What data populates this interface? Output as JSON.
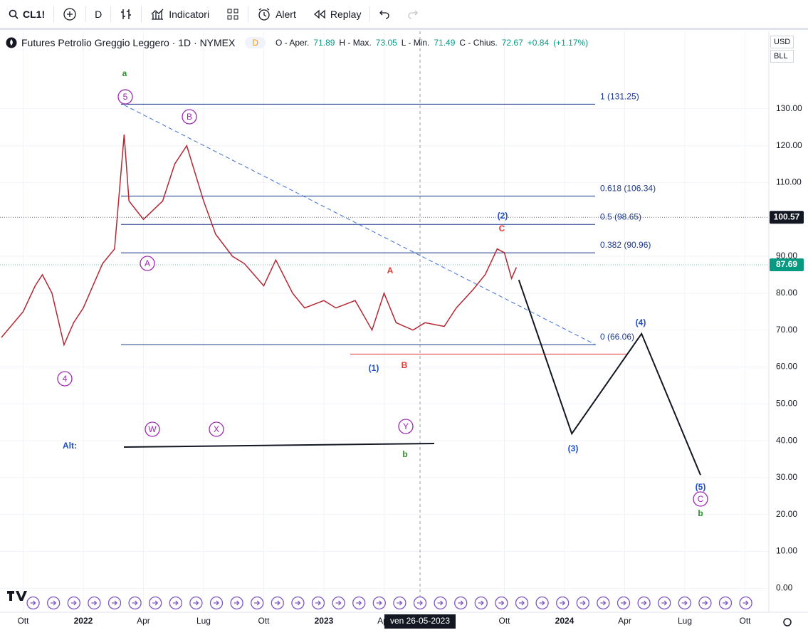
{
  "toolbar": {
    "symbol": "CL1!",
    "interval": "D",
    "indicators": "Indicatori",
    "alert": "Alert",
    "replay": "Replay"
  },
  "legend": {
    "title": "Futures Petrolio Greggio Leggero · 1D · NYMEX",
    "badge": "D",
    "open_label": "O - Aper.",
    "open": "71.89",
    "high_label": "H - Max.",
    "high": "73.05",
    "low_label": "L - Min.",
    "low": "71.49",
    "close_label": "C - Chius.",
    "close": "72.67",
    "change": "+0.84",
    "change_pct": "(+1.17%)"
  },
  "price_scale": {
    "currency": "USD",
    "unit": "BLL"
  },
  "crosshair_date": "ven 26-05-2023",
  "chart_data": {
    "type": "line",
    "color": "#b22833",
    "x": [
      2021.66,
      2021.75,
      2021.8,
      2021.83,
      2021.87,
      2021.92,
      2021.96,
      2022.0,
      2022.08,
      2022.13,
      2022.17,
      2022.19,
      2022.25,
      2022.33,
      2022.38,
      2022.43,
      2022.5,
      2022.55,
      2022.62,
      2022.67,
      2022.75,
      2022.8,
      2022.87,
      2022.92,
      2023.0,
      2023.05,
      2023.13,
      2023.2,
      2023.25,
      2023.3,
      2023.37,
      2023.42,
      2023.5,
      2023.55,
      2023.62,
      2023.67,
      2023.72,
      2023.75,
      2023.78,
      2023.8
    ],
    "values": [
      68,
      75,
      82,
      85,
      80,
      66,
      72,
      76,
      88,
      92,
      123,
      105,
      100,
      105,
      115,
      120,
      105,
      96,
      90,
      88,
      82,
      89,
      80,
      76,
      78,
      76,
      78,
      70,
      80,
      72,
      70,
      72,
      71,
      76,
      81,
      85,
      92,
      91,
      84,
      87
    ],
    "xlim": [
      2021.654,
      2024.849
    ],
    "ylim": [
      -6.5,
      151
    ],
    "xticks": [
      {
        "value": 2021.75,
        "label": "Ott"
      },
      {
        "value": 2022.0,
        "label": "2022"
      },
      {
        "value": 2022.25,
        "label": "Apr"
      },
      {
        "value": 2022.5,
        "label": "Lug"
      },
      {
        "value": 2022.75,
        "label": "Ott"
      },
      {
        "value": 2023.0,
        "label": "2023"
      },
      {
        "value": 2023.25,
        "label": "Apr"
      },
      {
        "value": 2023.75,
        "label": "Ott"
      },
      {
        "value": 2024.0,
        "label": "2024"
      },
      {
        "value": 2024.25,
        "label": "Apr"
      },
      {
        "value": 2024.5,
        "label": "Lug"
      },
      {
        "value": 2024.75,
        "label": "Ott"
      }
    ],
    "yticks": [
      {
        "value": 0,
        "label": "0.00"
      },
      {
        "value": 10,
        "label": "10.00"
      },
      {
        "value": 20,
        "label": "20.00"
      },
      {
        "value": 30,
        "label": "30.00"
      },
      {
        "value": 40,
        "label": "40.00"
      },
      {
        "value": 50,
        "label": "50.00"
      },
      {
        "value": 60,
        "label": "60.00"
      },
      {
        "value": 70,
        "label": "70.00"
      },
      {
        "value": 80,
        "label": "80.00"
      },
      {
        "value": 90,
        "label": "90.00"
      },
      {
        "value": 110,
        "label": "110.00"
      },
      {
        "value": 120,
        "label": "120.00"
      },
      {
        "value": 130,
        "label": "130.00"
      }
    ],
    "grid": true,
    "fib_levels": [
      {
        "value": 131.25,
        "label": "1 (131.25)"
      },
      {
        "value": 106.34,
        "label": "0.618 (106.34)"
      },
      {
        "value": 98.65,
        "label": "0.5 (98.65)"
      },
      {
        "value": 90.96,
        "label": "0.382 (90.96)"
      },
      {
        "value": 66.06,
        "label": "0 (66.06)"
      }
    ],
    "support": 63.5,
    "trendline": {
      "x": [
        2022.17,
        2024.13
      ],
      "values": [
        131,
        66
      ]
    },
    "projection": {
      "x": [
        2023.81,
        2024.03,
        2024.32,
        2024.565
      ],
      "values": [
        83.6,
        41.9,
        69,
        30.7
      ]
    },
    "price_tags": [
      {
        "value": 100.57,
        "label": "100.57",
        "color": "#131722"
      },
      {
        "value": 87.69,
        "label": "87.69",
        "color": "#089981"
      }
    ],
    "waves": [
      {
        "label": "a",
        "color": "#2e8b2e",
        "circled": false
      },
      {
        "label": "5",
        "color": "#9c27b0",
        "circled": true
      },
      {
        "label": "B",
        "color": "#9c27b0",
        "circled": true
      },
      {
        "label": "A",
        "color": "#9c27b0",
        "circled": true
      },
      {
        "label": "4",
        "color": "#9c27b0",
        "circled": true
      },
      {
        "label": "W",
        "color": "#9c27b0",
        "circled": true
      },
      {
        "label": "X",
        "color": "#9c27b0",
        "circled": true
      },
      {
        "label": "Y",
        "color": "#9c27b0",
        "circled": true
      },
      {
        "label": "b",
        "color": "#2e8b2e",
        "circled": false
      },
      {
        "label": "A",
        "color": "#e53935",
        "circled": false
      },
      {
        "label": "B",
        "color": "#e53935",
        "circled": false
      },
      {
        "label": "C",
        "color": "#e53935",
        "circled": false
      },
      {
        "label": "(1)",
        "color": "#1e4fc8",
        "circled": false
      },
      {
        "label": "(2)",
        "color": "#1e4fc8",
        "circled": false
      },
      {
        "label": "(3)",
        "color": "#1e4fc8",
        "circled": false
      },
      {
        "label": "(4)",
        "color": "#1e4fc8",
        "circled": false
      },
      {
        "label": "(5)",
        "color": "#1e4fc8",
        "circled": false
      },
      {
        "label": "C",
        "color": "#9c27b0",
        "circled": true
      },
      {
        "label": "b",
        "color": "#2e8b2e",
        "circled": false
      },
      {
        "label": "Alt:",
        "color": "#1e4fc8",
        "circled": false
      }
    ]
  }
}
